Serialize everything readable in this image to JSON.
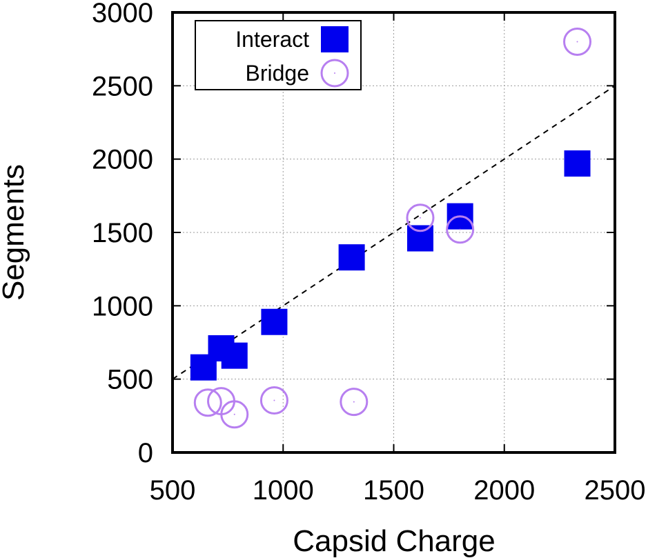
{
  "chart_data": {
    "type": "scatter",
    "xlabel": "Capsid Charge",
    "ylabel": "Segments",
    "xlim": [
      500,
      2500
    ],
    "ylim": [
      0,
      3000
    ],
    "xticks": [
      "500",
      "1000",
      "1500",
      "2000",
      "2500"
    ],
    "yticks": [
      "0",
      "500",
      "1000",
      "1500",
      "2000",
      "2500",
      "3000"
    ],
    "grid": true,
    "legend_position": "top-left",
    "series": [
      {
        "name": "Interact",
        "marker": "filled-square",
        "color": "#0000ee",
        "points": [
          [
            640,
            580
          ],
          [
            720,
            710
          ],
          [
            780,
            660
          ],
          [
            960,
            890
          ],
          [
            1310,
            1330
          ],
          [
            1620,
            1460
          ],
          [
            1800,
            1610
          ],
          [
            2330,
            1970
          ]
        ]
      },
      {
        "name": "Bridge",
        "marker": "open-circle",
        "color": "#b77ff0",
        "points": [
          [
            660,
            340
          ],
          [
            720,
            350
          ],
          [
            780,
            260
          ],
          [
            960,
            355
          ],
          [
            1320,
            345
          ],
          [
            1620,
            1600
          ],
          [
            1800,
            1520
          ],
          [
            2330,
            2800
          ]
        ]
      }
    ],
    "reference_line": {
      "style": "dashed",
      "color": "#000000",
      "from": [
        500,
        500
      ],
      "to": [
        2500,
        2500
      ]
    }
  }
}
